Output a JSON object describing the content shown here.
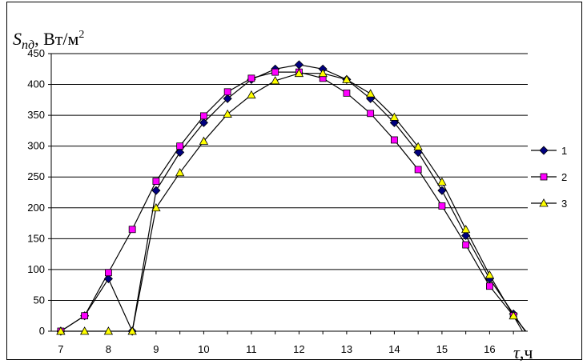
{
  "chart_data": {
    "type": "line",
    "ylabel": {
      "symbol": "S",
      "subscript": "пд",
      "unit": ", Вт/м",
      "unit_power": "2"
    },
    "xlabel": {
      "symbol": "τ",
      "unit": ",ч"
    },
    "xlim": [
      6.8,
      16.8
    ],
    "ylim": [
      0,
      450
    ],
    "x_ticks": [
      "7",
      "8",
      "9",
      "10",
      "11",
      "12",
      "13",
      "14",
      "15",
      "16"
    ],
    "y_ticks": [
      "0",
      "50",
      "100",
      "150",
      "200",
      "250",
      "300",
      "350",
      "400",
      "450"
    ],
    "grid": "horizontal",
    "legend": "right",
    "colors": {
      "series1": "#000080",
      "series2": "#ff00ff",
      "series3": "#ffff00",
      "line": "#000000"
    },
    "series": [
      {
        "name": "1",
        "marker": "diamond",
        "x": [
          7,
          7.5,
          8,
          8.5,
          9,
          9.5,
          10,
          10.5,
          11,
          11.5,
          12,
          12.5,
          13,
          13.5,
          14,
          14.5,
          15,
          15.5,
          16,
          16.5
        ],
        "y": [
          0,
          25,
          85,
          0,
          228,
          290,
          338,
          377,
          408,
          425,
          432,
          425,
          408,
          377,
          338,
          290,
          228,
          155,
          85,
          28
        ]
      },
      {
        "name": "2",
        "marker": "square",
        "x": [
          7,
          7.5,
          8,
          8.5,
          9,
          9.5,
          10,
          10.5,
          11,
          11.5,
          12,
          12.5,
          13,
          13.5,
          14,
          14.5,
          15,
          15.5,
          16,
          16.5
        ],
        "y": [
          0,
          25,
          95,
          165,
          243,
          300,
          349,
          388,
          410,
          420,
          420,
          410,
          386,
          353,
          310,
          262,
          203,
          140,
          73,
          25
        ]
      },
      {
        "name": "3",
        "marker": "triangle",
        "x": [
          7,
          7.5,
          8,
          8.5,
          9,
          9.5,
          10,
          10.5,
          11,
          11.5,
          12,
          12.5,
          13,
          13.5,
          14,
          14.5,
          15,
          15.5,
          16,
          16.5
        ],
        "y": [
          0,
          0,
          0,
          0,
          200,
          257,
          308,
          352,
          383,
          406,
          418,
          418,
          408,
          385,
          347,
          299,
          242,
          165,
          91,
          25
        ]
      }
    ]
  }
}
